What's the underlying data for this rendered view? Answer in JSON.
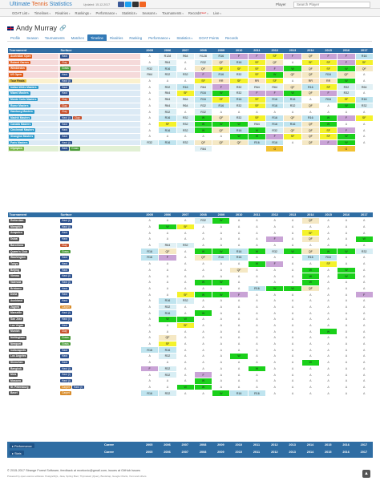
{
  "brand": {
    "part1": "Ultimate",
    "part2": "Tennis",
    "part3": "Statistics"
  },
  "updated": "Updated: 15-12-2017",
  "menu": [
    {
      "label": "GOAT List",
      "caret": "▾"
    },
    {
      "label": "Timelines",
      "caret": "▾"
    },
    {
      "label": "Rivalries",
      "caret": "▾"
    },
    {
      "label": "Rankings",
      "caret": "▾"
    },
    {
      "label": "Performance",
      "caret": "▾"
    },
    {
      "label": "Statistics",
      "caret": "▾"
    },
    {
      "label": "Seasons",
      "caret": "▾"
    },
    {
      "label": "Tournaments",
      "caret": "▾"
    },
    {
      "label": "Records",
      "caret": "▾",
      "badge": "New!"
    },
    {
      "label": "Live",
      "caret": "▾"
    }
  ],
  "search": {
    "label": "Player",
    "placeholder": "Search Player"
  },
  "player": {
    "name": "Andy Murray"
  },
  "tabs": [
    {
      "label": "Profile"
    },
    {
      "label": "Season"
    },
    {
      "label": "Tournaments"
    },
    {
      "label": "Matches"
    },
    {
      "label": "Timeline",
      "active": true
    },
    {
      "label": "Rivalries"
    },
    {
      "label": "Ranking"
    },
    {
      "label": "Performance",
      "caret": "▾"
    },
    {
      "label": "Statistics",
      "caret": "▾"
    },
    {
      "label": "GOAT Points"
    },
    {
      "label": "Records"
    }
  ],
  "years": [
    "2005",
    "2006",
    "2007",
    "2008",
    "2009",
    "2010",
    "2011",
    "2012",
    "2013",
    "2014",
    "2015",
    "2016",
    "2017"
  ],
  "table1": {
    "col_tournament": "Tournament",
    "col_surface": "Surface",
    "rows": [
      {
        "name": "Australian Open",
        "level": "gs",
        "surfaces": [
          {
            "s": "Hard",
            "k": "hard"
          }
        ],
        "r": [
          "A",
          "R128",
          "R64",
          "R128",
          "R16",
          "F",
          "F",
          "SF",
          "F",
          "QF",
          "F",
          "F",
          "R16"
        ]
      },
      {
        "name": "Roland Garros",
        "level": "gs",
        "surfaces": [
          {
            "s": "Clay",
            "k": "clay"
          }
        ],
        "r": [
          "A",
          "R64",
          "A",
          "R32",
          "QF",
          "R16",
          "SF",
          "QF",
          "A",
          "SF",
          "SF",
          "F",
          "SF"
        ]
      },
      {
        "name": "Wimbledon",
        "level": "gs",
        "surfaces": [
          {
            "s": "Grass",
            "k": "grass"
          }
        ],
        "r": [
          "R32",
          "R16",
          "A",
          "QF",
          "SF",
          "SF",
          "SF",
          "F",
          "W",
          "QF",
          "SF",
          "W",
          "QF"
        ]
      },
      {
        "name": "US Open",
        "level": "gs",
        "surfaces": [
          {
            "s": "Hard",
            "k": "hard"
          }
        ],
        "r": [
          "R64",
          "R32",
          "R32",
          "F",
          "R16",
          "R32",
          "SF",
          "W",
          "QF",
          "QF",
          "R16",
          "QF",
          "A"
        ]
      },
      {
        "name": "Tour Finals",
        "level": "tf",
        "surfaces": [
          {
            "s": "Hard (i)",
            "k": "hard"
          }
        ],
        "r": [
          "A",
          "A",
          "A",
          "SF",
          "RR",
          "SF",
          "RR",
          "SF",
          "A",
          "RR",
          "RR",
          "W",
          "A"
        ]
      },
      {
        "name": "Indian Wells Masters",
        "level": "m1000",
        "surfaces": [
          {
            "s": "Hard",
            "k": "hard"
          }
        ],
        "r": [
          "A",
          "R32",
          "R16",
          "R64",
          "F",
          "R32",
          "R64",
          "R64",
          "QF",
          "R16",
          "SF",
          "R32",
          "R64"
        ]
      },
      {
        "name": "Miami Masters",
        "level": "m1000",
        "surfaces": [
          {
            "s": "Hard",
            "k": "hard"
          }
        ],
        "r": [
          "A",
          "R64",
          "SF",
          "R16",
          "W",
          "R32",
          "F",
          "F",
          "W",
          "QF",
          "F",
          "R32",
          "A"
        ]
      },
      {
        "name": "Monte Carlo Masters",
        "level": "m1000",
        "surfaces": [
          {
            "s": "Clay",
            "k": "clay"
          }
        ],
        "r": [
          "A",
          "R64",
          "R64",
          "R16",
          "SF",
          "R16",
          "SF",
          "R16",
          "R16",
          "A",
          "R16",
          "SF",
          "R16"
        ]
      },
      {
        "name": "Rome Masters",
        "level": "m1000",
        "surfaces": [
          {
            "s": "Clay",
            "k": "clay"
          }
        ],
        "r": [
          "A",
          "R64",
          "R64",
          "R32",
          "R16",
          "R32",
          "SF",
          "R16",
          "R32",
          "QF",
          "A",
          "W",
          "R32"
        ]
      },
      {
        "name": "Hamburg Masters",
        "level": "m1000",
        "surfaces": [
          {
            "s": "Clay",
            "k": "clay"
          }
        ],
        "r": [
          "A",
          "R32",
          "A",
          "R32",
          "A",
          "A",
          "A",
          "A",
          "A",
          "A",
          "A",
          "A",
          "A"
        ]
      },
      {
        "name": "Madrid Masters",
        "level": "m1000",
        "surfaces": [
          {
            "s": "Hard (i)",
            "k": "hard"
          },
          {
            "s": "Clay",
            "k": "clay"
          }
        ],
        "r": [
          "A",
          "R16",
          "R32",
          "W",
          "QF",
          "R32",
          "SF",
          "R16",
          "QF",
          "R16",
          "W",
          "F",
          "SF"
        ]
      },
      {
        "name": "Canada Masters",
        "level": "m1000",
        "surfaces": [
          {
            "s": "Hard",
            "k": "hard"
          }
        ],
        "r": [
          "A",
          "SF",
          "R32",
          "W",
          "W",
          "W",
          "R64",
          "R16",
          "R16",
          "QF",
          "W",
          "A",
          "A"
        ]
      },
      {
        "name": "Cincinnati Masters",
        "level": "m1000",
        "surfaces": [
          {
            "s": "Hard",
            "k": "hard"
          }
        ],
        "r": [
          "A",
          "R16",
          "R32",
          "W",
          "QF",
          "R16",
          "W",
          "R32",
          "QF",
          "QF",
          "SF",
          "F",
          "A"
        ]
      },
      {
        "name": "Shanghai Masters",
        "level": "m1000",
        "surfaces": [
          {
            "s": "Hard",
            "k": "hard"
          }
        ],
        "r": [
          "A",
          "A",
          "A",
          "A",
          "A",
          "W",
          "W",
          "F",
          "SF",
          "QF",
          "SF",
          "W",
          "A"
        ]
      },
      {
        "name": "Paris Masters",
        "level": "m1000",
        "surfaces": [
          {
            "s": "Hard (i)",
            "k": "hard"
          }
        ],
        "r": [
          "R32",
          "R16",
          "R32",
          "QF",
          "QF",
          "QF",
          "R16",
          "R16",
          "A",
          "QF",
          "F",
          "W",
          "A"
        ]
      },
      {
        "name": "Olympics",
        "level": "oly",
        "surfaces": [
          {
            "s": "Hard",
            "k": "hard"
          },
          {
            "s": "Grass",
            "k": "grass"
          }
        ],
        "r": [
          "",
          "",
          "",
          "R64",
          "",
          "",
          "",
          "G",
          "",
          "",
          "",
          "G",
          ""
        ]
      }
    ]
  },
  "table2": {
    "col_tournament": "Tournament",
    "col_surface": "Surface",
    "rows": [
      {
        "name": "Rotterdam",
        "surfaces": [
          {
            "s": "Hard (i)",
            "k": "hard"
          }
        ],
        "r": [
          "A",
          "A",
          "A",
          "R32",
          "W",
          "A",
          "A",
          "A",
          "A",
          "QF",
          "A",
          "A",
          "A"
        ]
      },
      {
        "name": "Memphis",
        "surfaces": [
          {
            "s": "Hard (i)",
            "k": "hard"
          }
        ],
        "r": [
          "A",
          "W",
          "SF",
          "A",
          "A",
          "A",
          "A",
          "A",
          "A",
          "A",
          "A",
          "A",
          "A"
        ]
      },
      {
        "name": "Acapulco",
        "surfaces": [
          {
            "s": "Hard",
            "k": "hard"
          }
        ],
        "r": [
          "A",
          "A",
          "A",
          "A",
          "A",
          "A",
          "A",
          "A",
          "A",
          "SF",
          "A",
          "A",
          "A"
        ]
      },
      {
        "name": "Dubai",
        "surfaces": [
          {
            "s": "Hard",
            "k": "hard"
          }
        ],
        "r": [
          "A",
          "A",
          "A",
          "A",
          "A",
          "A",
          "A",
          "F",
          "A",
          "QF",
          "A",
          "A",
          "W"
        ]
      },
      {
        "name": "Barcelona",
        "surfaces": [
          {
            "s": "Clay",
            "k": "clay"
          }
        ],
        "r": [
          "A",
          "R64",
          "R32",
          "A",
          "A",
          "A",
          "A",
          "A",
          "A",
          "A",
          "A",
          "A",
          "A"
        ]
      },
      {
        "name": "Queen's Club",
        "surfaces": [
          {
            "s": "Grass",
            "k": "grass"
          }
        ],
        "r": [
          "R16",
          "QF",
          "A",
          "W",
          "W",
          "R16",
          "W",
          "R32",
          "W",
          "QF",
          "W",
          "W",
          "R32"
        ]
      },
      {
        "name": "Washington",
        "surfaces": [
          {
            "s": "Hard",
            "k": "hard"
          }
        ],
        "r": [
          "R16",
          "F",
          "A",
          "QF",
          "R16",
          "R16",
          "A",
          "A",
          "A",
          "R16",
          "R16",
          "A",
          "A"
        ]
      },
      {
        "name": "Tokyo",
        "surfaces": [
          {
            "s": "Hard",
            "k": "hard"
          }
        ],
        "r": [
          "A",
          "A",
          "A",
          "A",
          "A",
          "A",
          "W",
          "F",
          "A",
          "A",
          "SF",
          "A",
          "A"
        ]
      },
      {
        "name": "Beijing",
        "surfaces": [
          {
            "s": "Hard",
            "k": "hard"
          }
        ],
        "r": [
          "A",
          "A",
          "A",
          "A",
          "A",
          "QF",
          "A",
          "A",
          "A",
          "W",
          "A",
          "W",
          "A"
        ]
      },
      {
        "name": "Vienna",
        "surfaces": [
          {
            "s": "Hard (i)",
            "k": "hard"
          }
        ],
        "r": [
          "A",
          "A",
          "A",
          "A",
          "A",
          "A",
          "A",
          "A",
          "A",
          "W",
          "A",
          "W",
          "A"
        ]
      },
      {
        "name": "Valencia",
        "surfaces": [
          {
            "s": "Hard (i)",
            "k": "hard"
          }
        ],
        "r": [
          "A",
          "A",
          "A",
          "W",
          "W",
          "A",
          "A",
          "A",
          "A",
          "W",
          "A",
          "A",
          "A"
        ]
      },
      {
        "name": "Brisbane",
        "surfaces": [
          {
            "s": "Hard",
            "k": "hard"
          }
        ],
        "r": [
          "A",
          "A",
          "A",
          "A",
          "A",
          "A",
          "R16",
          "W",
          "W",
          "QF",
          "A",
          "A",
          "A"
        ]
      },
      {
        "name": "Doha",
        "surfaces": [
          {
            "s": "Hard",
            "k": "hard"
          }
        ],
        "r": [
          "A",
          "A",
          "SF",
          "W",
          "W",
          "F",
          "A",
          "A",
          "A",
          "A",
          "A",
          "A",
          "F"
        ]
      },
      {
        "name": "Auckland",
        "surfaces": [
          {
            "s": "Hard",
            "k": "hard"
          }
        ],
        "r": [
          "A",
          "R16",
          "R32",
          "A",
          "A",
          "A",
          "A",
          "A",
          "A",
          "A",
          "A",
          "A",
          "A"
        ]
      },
      {
        "name": "Zagreb",
        "surfaces": [
          {
            "s": "Carpet",
            "k": "carpet"
          }
        ],
        "r": [
          "A",
          "R32",
          "A",
          "A",
          "A",
          "A",
          "A",
          "A",
          "A",
          "A",
          "A",
          "A",
          "A"
        ]
      },
      {
        "name": "Marseille",
        "surfaces": [
          {
            "s": "Hard (i)",
            "k": "hard"
          }
        ],
        "r": [
          "A",
          "R16",
          "A",
          "W",
          "A",
          "A",
          "A",
          "A",
          "A",
          "A",
          "A",
          "A",
          "A"
        ]
      },
      {
        "name": "San Jose",
        "surfaces": [
          {
            "s": "Hard (i)",
            "k": "hard"
          }
        ],
        "r": [
          "A",
          "W",
          "W",
          "A",
          "A",
          "A",
          "A",
          "A",
          "A",
          "A",
          "A",
          "A",
          "A"
        ]
      },
      {
        "name": "Las Vegas",
        "surfaces": [
          {
            "s": "Hard",
            "k": "hard"
          }
        ],
        "r": [
          "A",
          "A",
          "SF",
          "A",
          "A",
          "A",
          "A",
          "A",
          "A",
          "A",
          "A",
          "A",
          "A"
        ]
      },
      {
        "name": "Munich",
        "surfaces": [
          {
            "s": "Clay",
            "k": "clay"
          }
        ],
        "r": [
          "A",
          "A",
          "A",
          "A",
          "A",
          "A",
          "A",
          "A",
          "A",
          "A",
          "W",
          "A",
          "A"
        ]
      },
      {
        "name": "Nottingham",
        "surfaces": [
          {
            "s": "Grass",
            "k": "grass"
          }
        ],
        "r": [
          "A",
          "QF",
          "A",
          "A",
          "A",
          "A",
          "A",
          "A",
          "A",
          "A",
          "A",
          "A",
          "A"
        ]
      },
      {
        "name": "Newport",
        "surfaces": [
          {
            "s": "Grass",
            "k": "grass"
          }
        ],
        "r": [
          "A",
          "SF",
          "A",
          "A",
          "A",
          "A",
          "A",
          "A",
          "A",
          "A",
          "A",
          "A",
          "A"
        ]
      },
      {
        "name": "Indianapolis",
        "surfaces": [
          {
            "s": "Hard",
            "k": "hard"
          }
        ],
        "r": [
          "R16",
          "R16",
          "A",
          "A",
          "A",
          "A",
          "A",
          "A",
          "A",
          "A",
          "A",
          "A",
          "A"
        ]
      },
      {
        "name": "Los Angeles",
        "surfaces": [
          {
            "s": "Hard",
            "k": "hard"
          }
        ],
        "r": [
          "A",
          "R32",
          "A",
          "A",
          "A",
          "W",
          "A",
          "A",
          "A",
          "A",
          "A",
          "A",
          "A"
        ]
      },
      {
        "name": "Shenzhen",
        "surfaces": [
          {
            "s": "Hard",
            "k": "hard"
          }
        ],
        "r": [
          "A",
          "A",
          "A",
          "A",
          "A",
          "A",
          "A",
          "A",
          "A",
          "W",
          "A",
          "A",
          "A"
        ]
      },
      {
        "name": "Bangkok",
        "surfaces": [
          {
            "s": "Hard (i)",
            "k": "hard"
          }
        ],
        "r": [
          "F",
          "R32",
          "A",
          "A",
          "A",
          "A",
          "W",
          "A",
          "A",
          "A",
          "A",
          "A",
          "A"
        ]
      },
      {
        "name": "Metz",
        "surfaces": [
          {
            "s": "Hard (i)",
            "k": "hard"
          }
        ],
        "r": [
          "A",
          "R32",
          "A",
          "F",
          "A",
          "A",
          "A",
          "A",
          "A",
          "A",
          "A",
          "A",
          "A"
        ]
      },
      {
        "name": "Moscow",
        "surfaces": [
          {
            "s": "Hard (i)",
            "k": "hard"
          }
        ],
        "r": [
          "A",
          "A",
          "A",
          "W",
          "A",
          "A",
          "A",
          "A",
          "A",
          "A",
          "A",
          "A",
          "A"
        ]
      },
      {
        "name": "St. Petersburg",
        "surfaces": [
          {
            "s": "Carpet",
            "k": "carpet"
          },
          {
            "s": "Hard (i)",
            "k": "hard"
          }
        ],
        "r": [
          "A",
          "A",
          "W",
          "W",
          "A",
          "A",
          "A",
          "A",
          "A",
          "A",
          "A",
          "A",
          "A"
        ]
      },
      {
        "name": "Basel",
        "surfaces": [
          {
            "s": "Carpet",
            "k": "carpet"
          }
        ],
        "r": [
          "R16",
          "R32",
          "A",
          "A",
          "W",
          "R16",
          "R16",
          "A",
          "A",
          "A",
          "A",
          "A",
          "A"
        ]
      }
    ]
  },
  "bottom": {
    "performance_btn": "Performance",
    "stats_btn": "Stats",
    "career_label": "Career"
  },
  "footer": {
    "line1": "© 2015-2017 Strange Forest Software, feedback at mcekovic@gmail.com, issues at GitHub Issues",
    "line2": "Powered by open-source software: PostgreSQL, Java, Spring Boot, Thymeleaf, jQuery, Bootstrap, Google Charts, Yemi and others"
  },
  "colors": {
    "brand_blue": "#2a7ec2",
    "brand_orange": "#e05b18",
    "header_blue": "#2f6da3",
    "win_green": "#1ad01a"
  }
}
